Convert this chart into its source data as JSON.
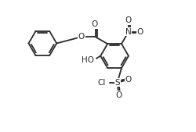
{
  "bg_color": "#ffffff",
  "line_color": "#2a2a2a",
  "line_width": 1.3,
  "font_size": 7.5,
  "fig_width": 2.5,
  "fig_height": 1.69,
  "dpi": 100,
  "xlim": [
    0,
    10
  ],
  "ylim": [
    0,
    6.76
  ]
}
